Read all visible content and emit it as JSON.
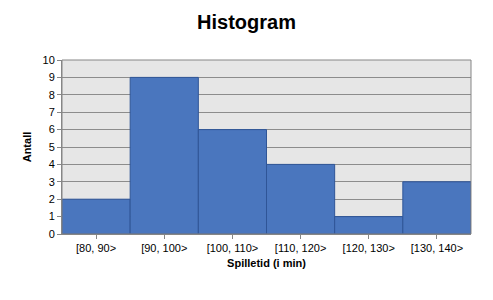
{
  "chart_data": {
    "type": "histogram",
    "title": "Histogram",
    "x_label": "Spilletid (i min)",
    "y_label": "Antall",
    "categories": [
      "[80, 90>",
      "[90, 100>",
      "[100, 110>",
      "[110, 120>",
      "[120, 130>",
      "[130, 140>"
    ],
    "values": [
      2,
      9,
      6,
      4,
      1,
      3
    ],
    "color": "#4a76be",
    "ylim": [
      0,
      10
    ],
    "yticks": [
      0,
      1,
      2,
      3,
      4,
      5,
      6,
      7,
      8,
      9,
      10
    ],
    "grid": true
  }
}
